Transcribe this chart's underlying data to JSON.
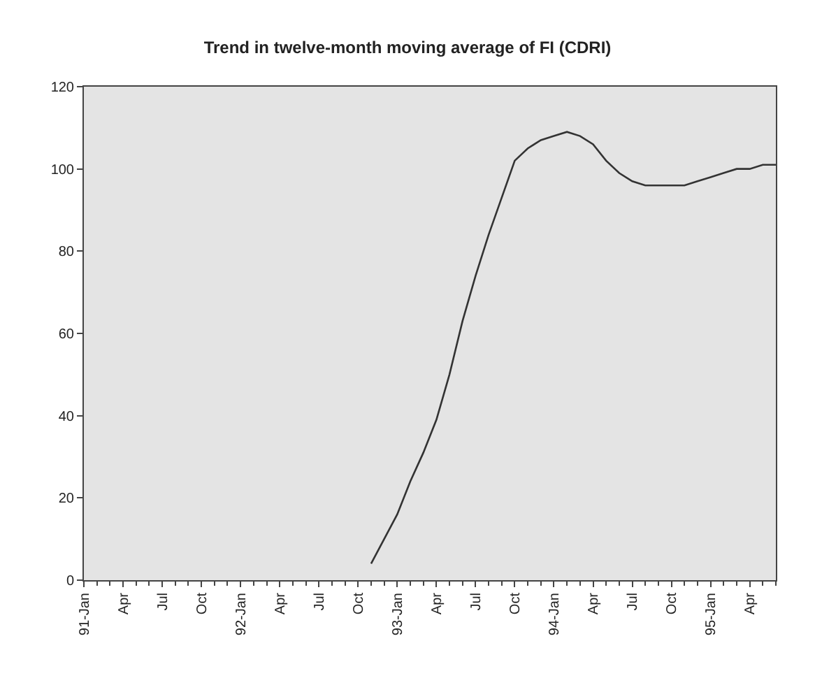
{
  "chart_data": {
    "type": "line",
    "title": "Trend in twelve-month moving average of FI (CDRI)",
    "categories": [
      "91-Jan",
      null,
      null,
      "Apr",
      null,
      null,
      "Jul",
      null,
      null,
      "Oct",
      null,
      null,
      "92-Jan",
      null,
      null,
      "Apr",
      null,
      null,
      "Jul",
      null,
      null,
      "Oct",
      null,
      null,
      "93-Jan",
      null,
      null,
      "Apr",
      null,
      null,
      "Jul",
      null,
      null,
      "Oct",
      null,
      null,
      "94-Jan",
      null,
      null,
      "Apr",
      null,
      null,
      "Jul",
      null,
      null,
      "Oct",
      null,
      null,
      "95-Jan",
      null,
      null,
      "Apr",
      null,
      null
    ],
    "series": [
      {
        "color": "#333333",
        "values": [
          null,
          null,
          null,
          null,
          null,
          null,
          null,
          null,
          null,
          null,
          null,
          null,
          null,
          null,
          null,
          null,
          null,
          null,
          null,
          null,
          null,
          null,
          4,
          10,
          16,
          24,
          31,
          39,
          50,
          63,
          74,
          84,
          93,
          102,
          105,
          107,
          108,
          109,
          108,
          106,
          102,
          99,
          97,
          96,
          96,
          96,
          96,
          97,
          98,
          99,
          100,
          100,
          101,
          101
        ]
      }
    ],
    "ylim": [
      0,
      120
    ],
    "yticks": [
      0,
      20,
      40,
      60,
      80,
      100,
      120
    ],
    "grid": false,
    "marker": "none",
    "line_style": "solid"
  }
}
